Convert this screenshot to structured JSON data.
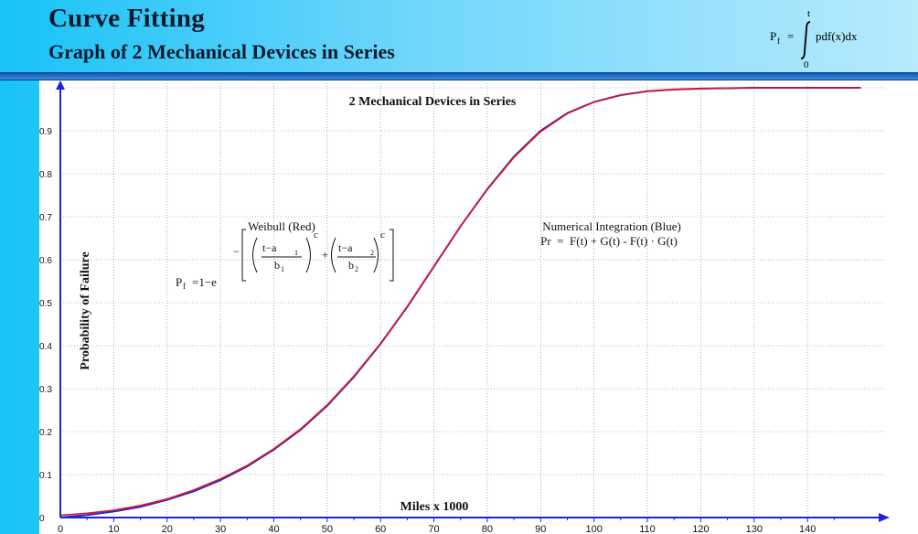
{
  "header": {
    "title": "Curve Fitting",
    "subtitle": "Graph of 2 Mechanical Devices in Series",
    "formula_lhs": "P",
    "formula_lhs_sub": "f",
    "formula_eq": "=",
    "formula_upper": "t",
    "formula_lower": "0",
    "formula_integrand": "pdf(x)dx"
  },
  "weibull_formula": {
    "lhs": "P",
    "lhs_sub": "f",
    "rhs_prefix": "=1−e",
    "minus": "−",
    "plus": "+",
    "num1_base": "t−a",
    "num1_sub": "1",
    "den1_base": "b",
    "den1_sub": "1",
    "num2_base": "t−a",
    "num2_sub": "2",
    "den2_base": "b",
    "den2_sub": "2",
    "exp1": "c",
    "exp2": "c"
  },
  "colors": {
    "blue_series": "#1c2bd6",
    "red_series": "#e0181c",
    "axis": "#1a24e0",
    "grid": "#6a7aa8"
  },
  "chart_data": {
    "type": "line",
    "title": "2 Mechanical Devices in Series",
    "xlabel": "Miles x 1000",
    "ylabel": "Probability of Failure",
    "xlim": [
      0,
      150
    ],
    "ylim": [
      0,
      1
    ],
    "x_ticks": [
      "0",
      "10",
      "20",
      "30",
      "40",
      "50",
      "60",
      "70",
      "80",
      "90",
      "100",
      "110",
      "120",
      "130",
      "140"
    ],
    "y_ticks": [
      "0",
      "0.1",
      "0.2",
      "0.3",
      "0.4",
      "0.5",
      "0.6",
      "0.7",
      "0.8",
      "0.9"
    ],
    "grid": true,
    "annotations": {
      "weibull_label": "Weibull (Red)",
      "numerical_label": "Numerical Integration (Blue)",
      "numerical_formula": "Pr  =  F(t) + G(t) - F(t) · G(t)"
    },
    "x": [
      0,
      5,
      10,
      15,
      20,
      25,
      30,
      35,
      40,
      45,
      50,
      55,
      60,
      65,
      70,
      75,
      80,
      85,
      90,
      95,
      100,
      105,
      110,
      115,
      120,
      125,
      130,
      135,
      140,
      145,
      150
    ],
    "series": [
      {
        "color": "#1c2bd6",
        "values": [
          0.0,
          0.006,
          0.014,
          0.025,
          0.041,
          0.061,
          0.087,
          0.119,
          0.158,
          0.204,
          0.26,
          0.327,
          0.404,
          0.49,
          0.584,
          0.678,
          0.764,
          0.84,
          0.9,
          0.941,
          0.967,
          0.983,
          0.992,
          0.996,
          0.998,
          0.999,
          1.0,
          1.0,
          1.0,
          1.0,
          1.0
        ]
      },
      {
        "color": "#e0181c",
        "values": [
          0.005,
          0.01,
          0.017,
          0.028,
          0.043,
          0.064,
          0.09,
          0.121,
          0.16,
          0.206,
          0.262,
          0.329,
          0.405,
          0.491,
          0.585,
          0.678,
          0.763,
          0.838,
          0.898,
          0.94,
          0.967,
          0.983,
          0.992,
          0.996,
          0.998,
          0.999,
          1.0,
          1.0,
          1.0,
          1.0,
          1.0
        ]
      }
    ]
  }
}
